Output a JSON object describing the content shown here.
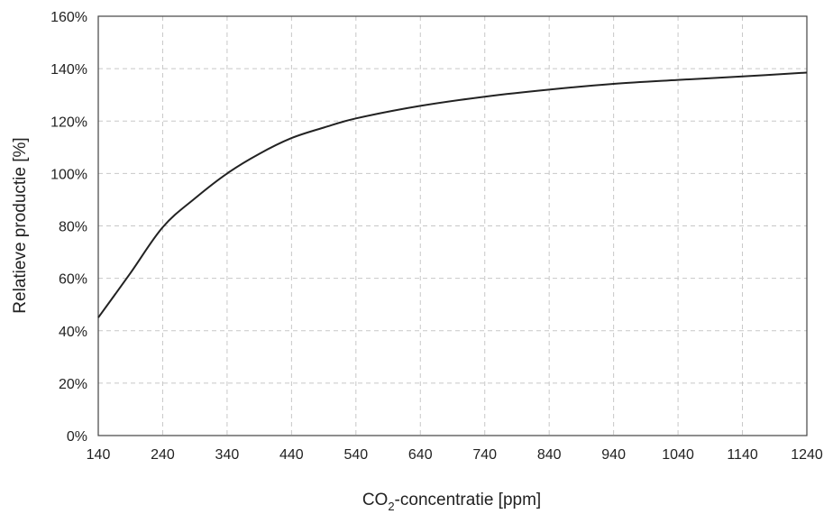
{
  "chart_data": {
    "type": "line",
    "title": "",
    "xlabel": "CO2-concentratie [ppm]",
    "xlabel_parts": {
      "before": "CO",
      "sub": "2",
      "after": "-concentratie [ppm]"
    },
    "ylabel": "Relatieve productie [%]",
    "x_ticks": [
      140,
      240,
      340,
      440,
      540,
      640,
      740,
      840,
      940,
      1040,
      1140,
      1240
    ],
    "y_ticks": [
      0,
      20,
      40,
      60,
      80,
      100,
      120,
      140,
      160
    ],
    "y_tick_labels": [
      "0%",
      "20%",
      "40%",
      "60%",
      "80%",
      "100%",
      "120%",
      "140%",
      "160%"
    ],
    "xlim": [
      140,
      1240
    ],
    "ylim": [
      0,
      160
    ],
    "grid": true,
    "series": [
      {
        "x": [
          140,
          190,
          240,
          290,
          340,
          390,
          440,
          490,
          540,
          640,
          740,
          840,
          940,
          1040,
          1140,
          1240
        ],
        "y": [
          45,
          62,
          79.5,
          90.5,
          100,
          107.5,
          113.5,
          117.5,
          121,
          125.8,
          129.3,
          132,
          134.2,
          135.7,
          137,
          138.5
        ]
      }
    ]
  }
}
